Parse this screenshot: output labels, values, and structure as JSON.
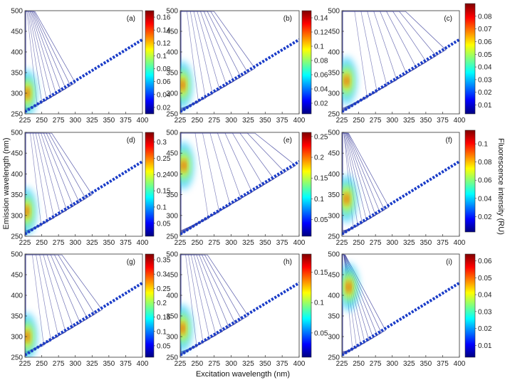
{
  "chart_data": {
    "type": "heatmap",
    "xlabel": "Excitation wavelength (nm)",
    "ylabel": "Emission wavelength (nm)",
    "colorbar_label": "Fluorescence intensity (RU)",
    "xlim": [
      225,
      400
    ],
    "ylim": [
      250,
      500
    ],
    "xticks": [
      "225",
      "250",
      "275",
      "300",
      "325",
      "350",
      "375",
      "400"
    ],
    "yticks": [
      "250",
      "300",
      "350",
      "400",
      "450",
      "500"
    ],
    "colors": {
      "contour": "#3a3d9a",
      "colormap": [
        "#00007f",
        "#0000ff",
        "#007fff",
        "#00ffff",
        "#7fff7f",
        "#ffff00",
        "#ff7f00",
        "#ff0000",
        "#7f0000"
      ]
    },
    "panels": [
      {
        "label": "(a)",
        "peak_ex": 228,
        "peak_em": 300,
        "ridge_ex": 300,
        "cbar_ticks": [
          "0.16",
          "0.14",
          "0.12",
          "0.1",
          "0.08",
          "0.06",
          "0.04",
          "0.02"
        ],
        "cbar_values": [
          0.16,
          0.14,
          0.12,
          0.1,
          0.08,
          0.06,
          0.04,
          0.02
        ],
        "cbar_range": [
          0.01,
          0.17
        ]
      },
      {
        "label": "(b)",
        "peak_ex": 228,
        "peak_em": 320,
        "ridge_ex": 335,
        "cbar_ticks": [
          "0.14",
          "0.12",
          "0.1",
          "0.08",
          "0.06",
          "0.04",
          "0.02"
        ],
        "cbar_values": [
          0.14,
          0.12,
          0.1,
          0.08,
          0.06,
          0.04,
          0.02
        ],
        "cbar_range": [
          0.005,
          0.15
        ]
      },
      {
        "label": "(c)",
        "peak_ex": 232,
        "peak_em": 330,
        "ridge_ex": 380,
        "cbar_ticks": [
          "0.08",
          "0.07",
          "0.06",
          "0.05",
          "0.04",
          "0.03",
          "0.02",
          "0.01"
        ],
        "cbar_values": [
          0.08,
          0.07,
          0.06,
          0.05,
          0.04,
          0.03,
          0.02,
          0.01
        ],
        "cbar_range": [
          0.003,
          0.09
        ]
      },
      {
        "label": "(d)",
        "peak_ex": 227,
        "peak_em": 310,
        "ridge_ex": 325,
        "cbar_ticks": [
          "0.3",
          "0.25",
          "0.2",
          "0.15",
          "0.1",
          "0.05"
        ],
        "cbar_values": [
          0.3,
          0.25,
          0.2,
          0.15,
          0.1,
          0.05
        ],
        "cbar_range": [
          0.01,
          0.33
        ]
      },
      {
        "label": "(e)",
        "peak_ex": 230,
        "peak_em": 420,
        "ridge_ex": 395,
        "cbar_ticks": [
          "0.25",
          "0.2",
          "0.15",
          "0.1",
          "0.05"
        ],
        "cbar_values": [
          0.25,
          0.2,
          0.15,
          0.1,
          0.05
        ],
        "cbar_range": [
          0.01,
          0.26
        ]
      },
      {
        "label": "(f)",
        "peak_ex": 232,
        "peak_em": 340,
        "ridge_ex": 295,
        "cbar_ticks": [
          "0.1",
          "0.08",
          "0.06",
          "0.04",
          "0.02"
        ],
        "cbar_values": [
          0.1,
          0.08,
          0.06,
          0.04,
          0.02
        ],
        "cbar_range": [
          0.003,
          0.115
        ]
      },
      {
        "label": "(g)",
        "peak_ex": 228,
        "peak_em": 300,
        "ridge_ex": 340,
        "cbar_ticks": [
          "0.35",
          "0.3",
          "0.25",
          "0.2",
          "0.15",
          "0.1",
          "0.05"
        ],
        "cbar_values": [
          0.35,
          0.3,
          0.25,
          0.2,
          0.15,
          0.1,
          0.05
        ],
        "cbar_range": [
          0.01,
          0.37
        ]
      },
      {
        "label": "(h)",
        "peak_ex": 228,
        "peak_em": 320,
        "ridge_ex": 325,
        "cbar_ticks": [
          "0.15",
          "0.1",
          "0.05"
        ],
        "cbar_values": [
          0.15,
          0.1,
          0.05
        ],
        "cbar_range": [
          0.01,
          0.18
        ]
      },
      {
        "label": "(i)",
        "peak_ex": 235,
        "peak_em": 420,
        "ridge_ex": 290,
        "cbar_ticks": [
          "0.06",
          "0.05",
          "0.04",
          "0.03",
          "0.02",
          "0.01"
        ],
        "cbar_values": [
          0.06,
          0.05,
          0.04,
          0.03,
          0.02,
          0.01
        ],
        "cbar_range": [
          0.003,
          0.064
        ]
      }
    ]
  }
}
